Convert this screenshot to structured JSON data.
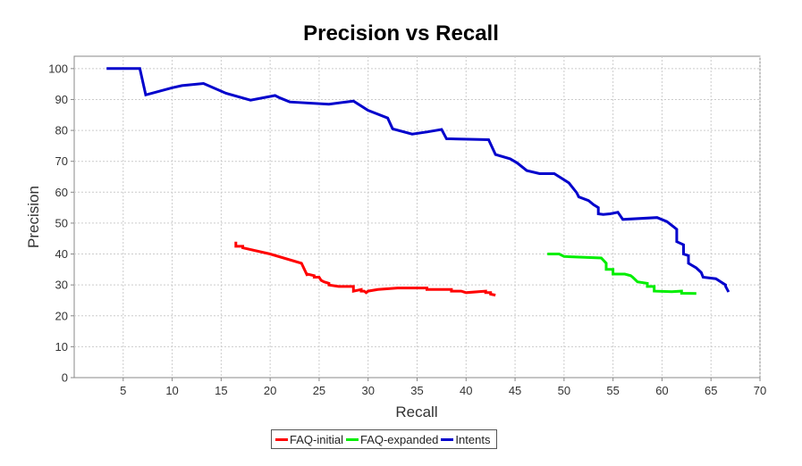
{
  "chart_data": {
    "type": "line",
    "title": "Precision vs Recall",
    "xlabel": "Recall",
    "ylabel": "Precision",
    "xlim": [
      0,
      70
    ],
    "ylim": [
      0,
      104
    ],
    "xticks": [
      5,
      10,
      15,
      20,
      25,
      30,
      35,
      40,
      45,
      50,
      55,
      60,
      65,
      70
    ],
    "yticks": [
      0,
      10,
      20,
      30,
      40,
      50,
      60,
      70,
      80,
      90,
      100
    ],
    "grid": true,
    "legend_position": "bottom",
    "series": [
      {
        "name": "FAQ-initial",
        "color": "#ff0000",
        "x": [
          16.5,
          16.5,
          17.2,
          17.2,
          20,
          23.2,
          23.8,
          23.8,
          24.5,
          24.5,
          25,
          25.2,
          25.5,
          26,
          26,
          27,
          28.5,
          28.5,
          29.3,
          29.3,
          29.6,
          29.8,
          30,
          31,
          33,
          36,
          36,
          37,
          38.5,
          38.5,
          39.5,
          40,
          42,
          42,
          42.5,
          42.5,
          43
        ],
        "y": [
          44,
          42.5,
          42.5,
          42,
          40,
          37,
          33,
          33.5,
          33,
          32.5,
          32.5,
          31.5,
          31,
          30.5,
          30,
          29.5,
          29.5,
          28,
          28.5,
          28,
          28,
          27.5,
          28,
          28.5,
          29,
          29,
          28.5,
          28.5,
          28.5,
          28,
          28,
          27.5,
          28,
          27.5,
          27.5,
          27,
          26.7
        ]
      },
      {
        "name": "FAQ-expanded",
        "color": "#00ee00",
        "x": [
          48.3,
          49.5,
          50,
          53.8,
          54.3,
          54.3,
          55,
          55,
          56.2,
          56.8,
          57,
          57.5,
          58.5,
          58.5,
          59.2,
          59.2,
          61,
          62,
          62,
          63.5
        ],
        "y": [
          40,
          40,
          39.2,
          38.7,
          37,
          35,
          35,
          33.5,
          33.5,
          33,
          32.5,
          31,
          30.5,
          29.5,
          29.5,
          28,
          27.8,
          28,
          27.3,
          27.2
        ]
      },
      {
        "name": "Intents",
        "color": "#0000cc",
        "x": [
          3.3,
          6.7,
          7.3,
          10,
          11,
          13.2,
          15.5,
          18,
          20.5,
          21,
          22,
          26,
          28.5,
          30,
          32,
          32.5,
          34.5,
          36,
          37.5,
          38,
          42.3,
          43,
          44.5,
          45.2,
          46.2,
          47.5,
          49,
          50.5,
          51.3,
          51.5,
          52.5,
          53,
          53.5,
          53.5,
          54,
          54.7,
          55.5,
          56,
          59.5,
          60.5,
          61.5,
          61.5,
          62.2,
          62.2,
          62.7,
          62.7,
          63.5,
          64,
          64.2,
          65.5,
          66.5,
          66.5,
          66.8
        ],
        "y": [
          100,
          100,
          91.5,
          93.8,
          94.5,
          95.2,
          92,
          89.8,
          91.3,
          90.5,
          89.2,
          88.5,
          89.5,
          86.5,
          84,
          80.5,
          78.8,
          79.5,
          80.3,
          77.3,
          77,
          72.2,
          70.8,
          69.5,
          67,
          66,
          66,
          63,
          59.8,
          58.5,
          57.3,
          56,
          55,
          53,
          52.8,
          53,
          53.5,
          51.2,
          51.8,
          50.5,
          48,
          44,
          43,
          40,
          39.5,
          37,
          35.5,
          34,
          32.5,
          32,
          30,
          29.5,
          27.7
        ]
      }
    ]
  }
}
